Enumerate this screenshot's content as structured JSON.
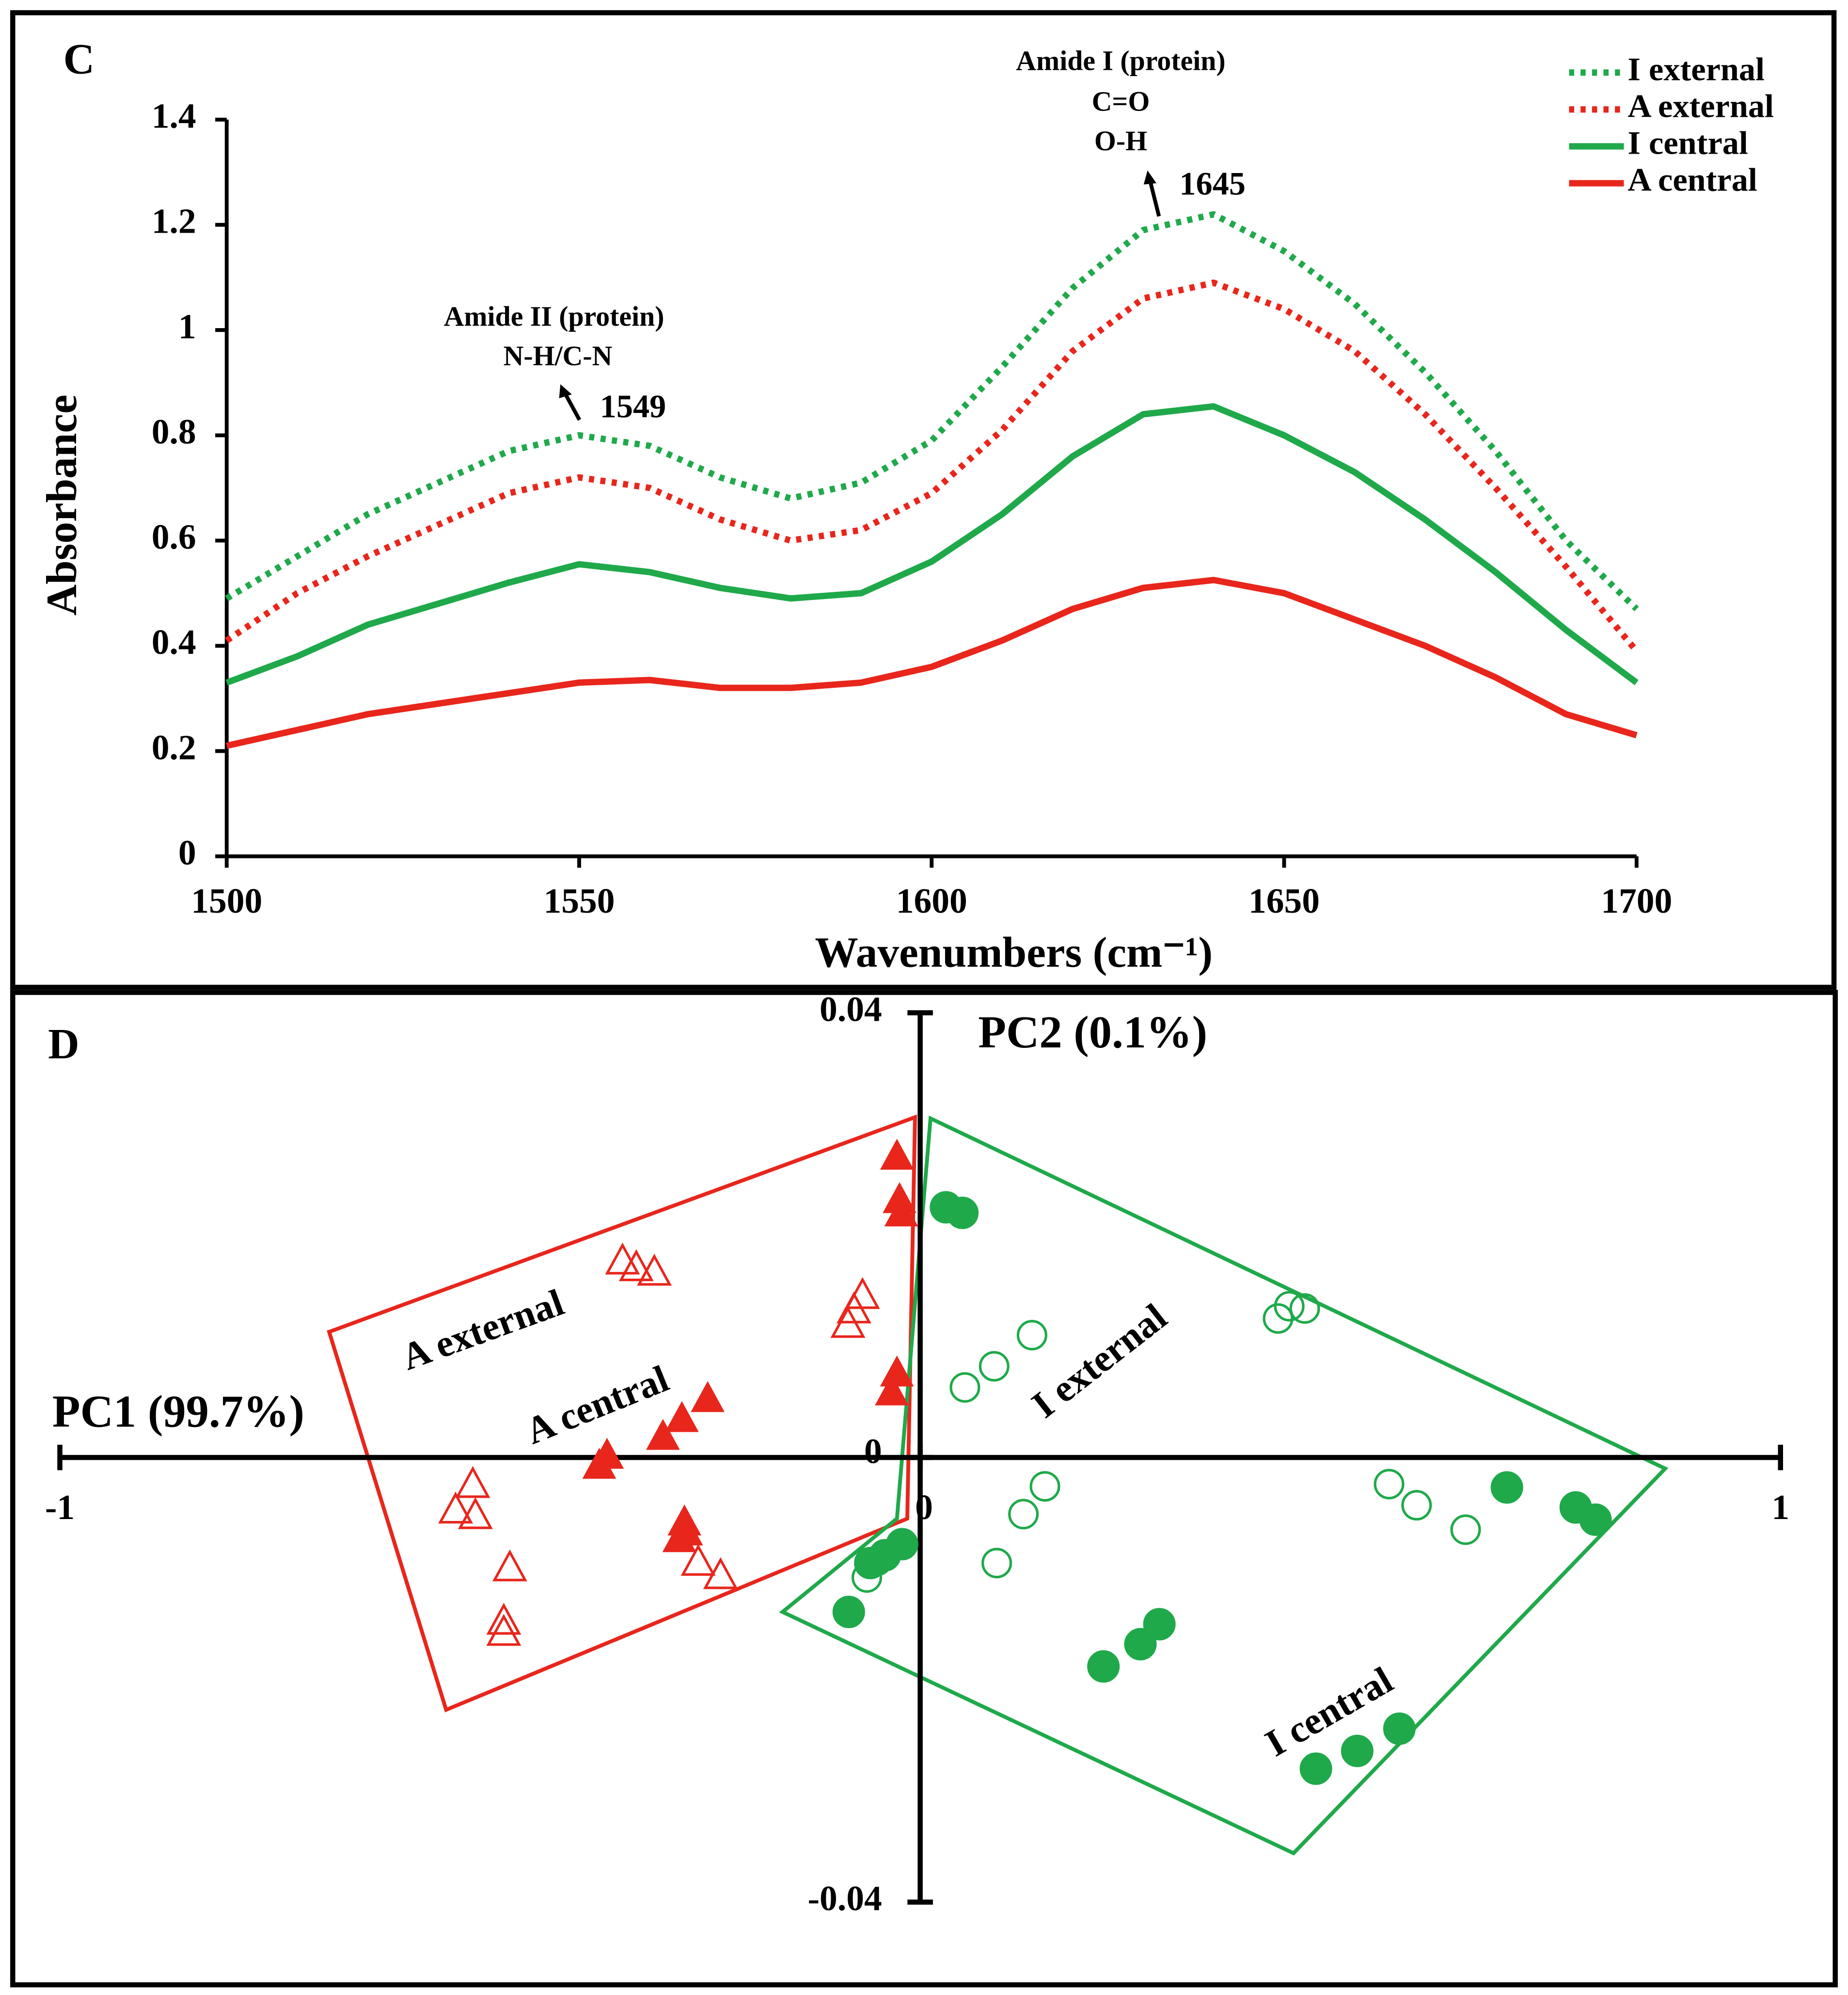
{
  "chart_data": [
    {
      "type": "line",
      "panel": "C",
      "y_label": "Absorbance",
      "x_label": "Wavenumbers (cm⁻¹)",
      "x": [
        1500,
        1510,
        1520,
        1530,
        1540,
        1550,
        1560,
        1570,
        1580,
        1590,
        1600,
        1610,
        1620,
        1630,
        1640,
        1650,
        1660,
        1670,
        1680,
        1690,
        1700
      ],
      "series": [
        {
          "name": "I external",
          "color": "#1fa94a",
          "dash": "dotted",
          "values": [
            0.49,
            0.57,
            0.65,
            0.71,
            0.77,
            0.8,
            0.78,
            0.72,
            0.68,
            0.71,
            0.79,
            0.93,
            1.08,
            1.19,
            1.22,
            1.15,
            1.05,
            0.92,
            0.77,
            0.6,
            0.47
          ]
        },
        {
          "name": "A external",
          "color": "#e8261c",
          "dash": "dotted",
          "values": [
            0.41,
            0.5,
            0.57,
            0.63,
            0.69,
            0.72,
            0.7,
            0.64,
            0.6,
            0.62,
            0.69,
            0.81,
            0.96,
            1.06,
            1.09,
            1.04,
            0.96,
            0.84,
            0.7,
            0.55,
            0.39
          ]
        },
        {
          "name": "I central",
          "color": "#1fa94a",
          "dash": "solid",
          "values": [
            0.33,
            0.38,
            0.44,
            0.48,
            0.52,
            0.555,
            0.54,
            0.51,
            0.49,
            0.5,
            0.56,
            0.65,
            0.76,
            0.84,
            0.855,
            0.8,
            0.73,
            0.64,
            0.54,
            0.43,
            0.33
          ]
        },
        {
          "name": "A central",
          "color": "#e8261c",
          "dash": "solid",
          "values": [
            0.21,
            0.24,
            0.27,
            0.29,
            0.31,
            0.33,
            0.335,
            0.32,
            0.32,
            0.33,
            0.36,
            0.41,
            0.47,
            0.51,
            0.525,
            0.5,
            0.45,
            0.4,
            0.34,
            0.27,
            0.23
          ]
        }
      ],
      "xlim": [
        1500,
        1700
      ],
      "xticks": [
        1500,
        1550,
        1600,
        1650,
        1700
      ],
      "ylim": [
        0,
        1.4
      ],
      "yticks": [
        0,
        0.2,
        0.4,
        0.6,
        0.8,
        1,
        1.2,
        1.4
      ],
      "annotations": [
        "Amide I (protein)",
        "C=O",
        "O-H",
        "1645",
        "Amide II (protein)",
        "N-H/C-N",
        "1549"
      ]
    },
    {
      "type": "scatter",
      "panel": "D",
      "x_label": "PC1 (99.7%)",
      "y_label": "PC2 (0.1%)",
      "xlim": [
        -1,
        1
      ],
      "xticks": [
        -1,
        0,
        1
      ],
      "ylim": [
        -0.04,
        0.04
      ],
      "yticks": [
        -0.04,
        0,
        0.04
      ],
      "series": [
        {
          "name": "A external",
          "color": "#e8261c",
          "marker": "triangle-open",
          "x": [
            -0.346,
            -0.33,
            -0.309,
            -0.067,
            -0.077,
            -0.084,
            -0.52,
            -0.54,
            -0.517,
            -0.477,
            -0.258,
            -0.232,
            -0.484,
            -0.484
          ],
          "values": [
            0.0176,
            0.017,
            0.0166,
            0.0145,
            0.0132,
            0.0119,
            -0.0025,
            -0.0048,
            -0.0053,
            -0.01,
            -0.0095,
            -0.0107,
            -0.0148,
            -0.0158
          ]
        },
        {
          "name": "A central",
          "color": "#e8261c",
          "marker": "triangle-filled",
          "x": [
            -0.027,
            -0.024,
            -0.022,
            -0.027,
            -0.033,
            -0.247,
            -0.277,
            -0.299,
            -0.364,
            -0.373,
            -0.274,
            -0.28,
            -0.272
          ],
          "values": [
            0.027,
            0.0231,
            0.0219,
            0.0075,
            0.0058,
            0.0052,
            0.0034,
            0.0018,
            0.0001,
            -0.0008,
            -0.0059,
            -0.0074,
            -0.0068
          ]
        },
        {
          "name": "I external",
          "color": "#1fa94a",
          "marker": "circle-open",
          "x": [
            0.052,
            0.086,
            0.13,
            0.416,
            0.429,
            0.447,
            0.145,
            0.12,
            0.089,
            -0.062,
            -0.05,
            0.545,
            0.577,
            0.634
          ],
          "values": [
            0.0063,
            0.0082,
            0.011,
            0.0125,
            0.0136,
            0.0134,
            -0.0026,
            -0.0051,
            -0.0095,
            -0.0108,
            -0.0093,
            -0.0024,
            -0.0043,
            -0.0065
          ]
        },
        {
          "name": "I central",
          "color": "#1fa94a",
          "marker": "circle-filled",
          "x": [
            0.03,
            0.049,
            0.682,
            0.762,
            0.785,
            -0.021,
            -0.041,
            -0.058,
            -0.083,
            0.213,
            0.256,
            0.278,
            0.557,
            0.508,
            0.46
          ],
          "values": [
            0.0225,
            0.022,
            -0.0027,
            -0.0045,
            -0.0056,
            -0.0078,
            -0.0088,
            -0.0095,
            -0.0139,
            -0.0188,
            -0.0168,
            -0.015,
            -0.0244,
            -0.0264,
            -0.028
          ]
        }
      ],
      "hulls": [
        {
          "color": "#e8261c",
          "x": [
            -0.687,
            -0.006,
            -0.015,
            -0.551
          ],
          "y": [
            0.0113,
            0.0306,
            -0.0055,
            -0.0227
          ]
        },
        {
          "color": "#1fa94a",
          "x": [
            0.012,
            0.866,
            0.434,
            -0.16,
            -0.027
          ],
          "y": [
            0.0305,
            -0.001,
            -0.0356,
            -0.0139,
            -0.0055
          ]
        }
      ]
    }
  ]
}
